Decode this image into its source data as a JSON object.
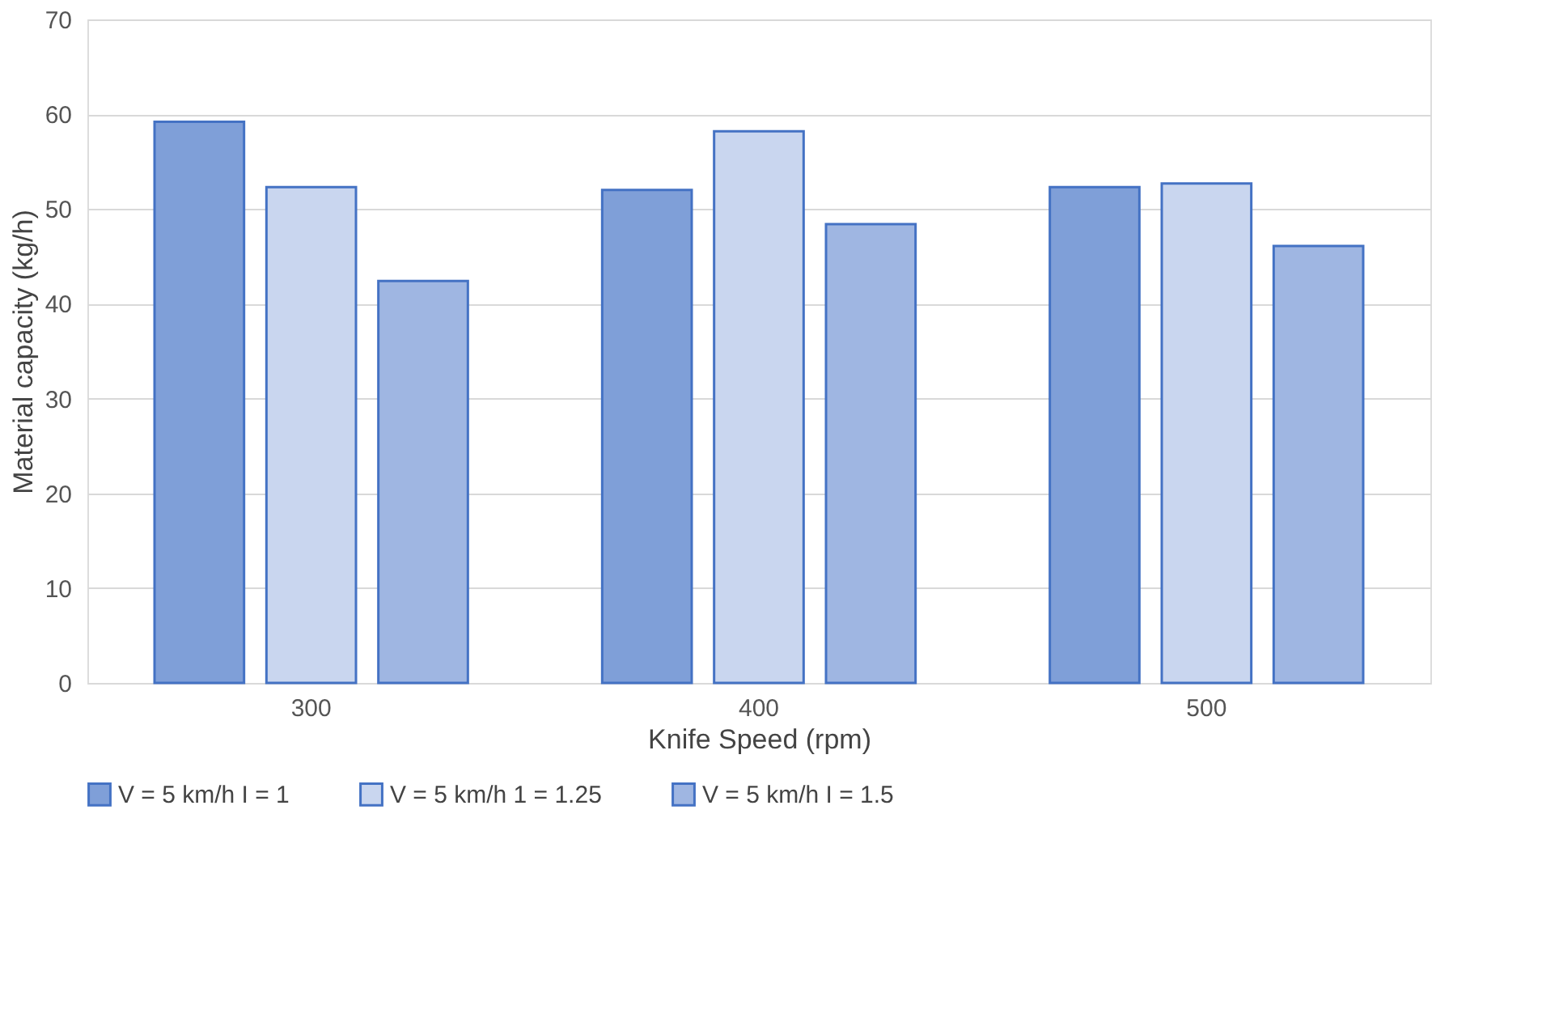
{
  "chart_data": {
    "type": "bar",
    "xlabel": "Knife Speed (rpm)",
    "ylabel": "Material capacity (kg/h)",
    "categories": [
      "300",
      "400",
      "500"
    ],
    "series": [
      {
        "name": "V = 5 km/h I = 1",
        "color": "#7f9fd8",
        "values": [
          59.2,
          52.0,
          52.3
        ]
      },
      {
        "name": "V = 5 km/h 1 = 1.25",
        "color": "#c9d6ef",
        "values": [
          52.3,
          58.2,
          52.7
        ]
      },
      {
        "name": "V = 5 km/h I = 1.5",
        "color": "#9fb6e2",
        "values": [
          42.4,
          48.4,
          46.1
        ]
      }
    ],
    "ylim": [
      0,
      70
    ],
    "yticks": [
      0,
      10,
      20,
      30,
      40,
      50,
      60,
      70
    ],
    "grid": "y",
    "legend": "bottom"
  }
}
